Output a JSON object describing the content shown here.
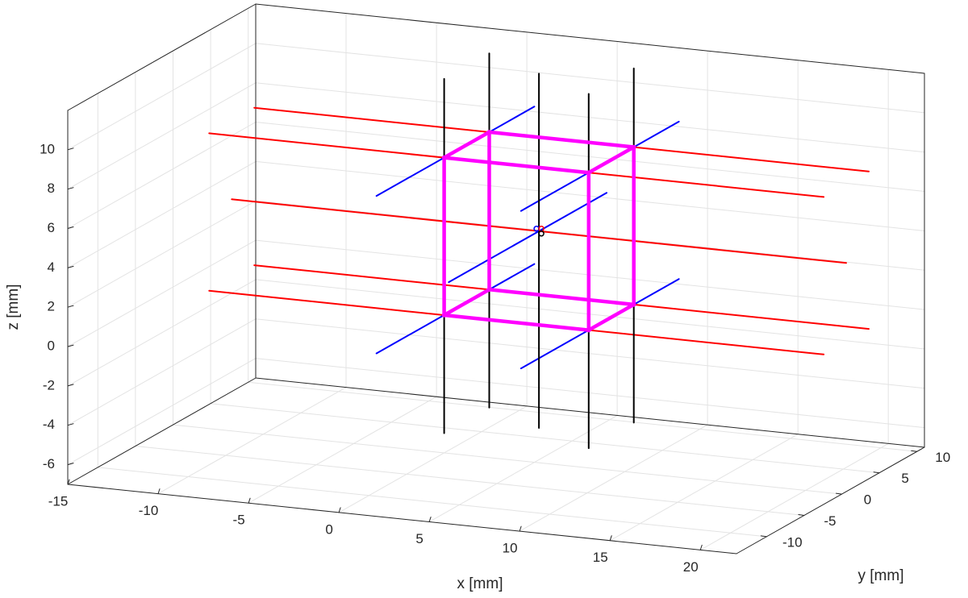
{
  "chart_data": {
    "type": "3d-line",
    "title": "",
    "xlabel": "x [mm]",
    "ylabel": "y [mm]",
    "zlabel": "z [mm]",
    "xlim": [
      -15,
      22
    ],
    "ylim": [
      -14,
      11
    ],
    "zlim": [
      -7,
      12
    ],
    "xticks": [
      -15,
      -10,
      -5,
      0,
      5,
      10,
      15,
      20
    ],
    "yticks": [
      -10,
      -5,
      0,
      5,
      10
    ],
    "zticks": [
      -6,
      -4,
      -2,
      0,
      2,
      4,
      6,
      8,
      10
    ],
    "xtick_labels": [
      "-15",
      "-10",
      "-5",
      "0",
      "5",
      "10",
      "15",
      "20"
    ],
    "ytick_labels": [
      "-10",
      "-5",
      "0",
      "5",
      "10"
    ],
    "ztick_labels": [
      "-6",
      "-4",
      "-2",
      "0",
      "2",
      "4",
      "6",
      "8",
      "10"
    ],
    "grid": true,
    "box": "outlined",
    "series": [
      {
        "kind": "box-frame",
        "color": "#ff00ff",
        "vertices": [
          [
            0,
            0,
            0
          ],
          [
            8,
            0,
            0
          ],
          [
            8,
            6,
            0
          ],
          [
            0,
            6,
            0
          ],
          [
            0,
            0,
            8
          ],
          [
            8,
            0,
            8
          ],
          [
            8,
            6,
            8
          ],
          [
            0,
            6,
            8
          ]
        ],
        "edges": [
          [
            0,
            1
          ],
          [
            1,
            2
          ],
          [
            2,
            3
          ],
          [
            3,
            0
          ],
          [
            4,
            5
          ],
          [
            5,
            6
          ],
          [
            6,
            7
          ],
          [
            7,
            4
          ],
          [
            0,
            4
          ],
          [
            1,
            5
          ],
          [
            2,
            6
          ],
          [
            3,
            7
          ]
        ]
      },
      {
        "kind": "axis-lines",
        "direction": "x",
        "color": "#ff0000",
        "x_range": [
          -13,
          21
        ],
        "offsets": [
          [
            0,
            0
          ],
          [
            6,
            0
          ],
          [
            0,
            8
          ],
          [
            6,
            8
          ],
          [
            3,
            4
          ]
        ]
      },
      {
        "kind": "axis-lines",
        "direction": "y",
        "color": "#0000ff",
        "y_range": [
          -9,
          12
        ],
        "offsets": [
          [
            0,
            0
          ],
          [
            8,
            0
          ],
          [
            0,
            8
          ],
          [
            8,
            8
          ],
          [
            4,
            4
          ]
        ]
      },
      {
        "kind": "axis-lines",
        "direction": "z",
        "color": "#000000",
        "z_range": [
          -6,
          12
        ],
        "offsets": [
          [
            0,
            0
          ],
          [
            8,
            0
          ],
          [
            0,
            6
          ],
          [
            8,
            6
          ],
          [
            4,
            3
          ]
        ]
      }
    ],
    "center_point": [
      4,
      3,
      4
    ]
  }
}
